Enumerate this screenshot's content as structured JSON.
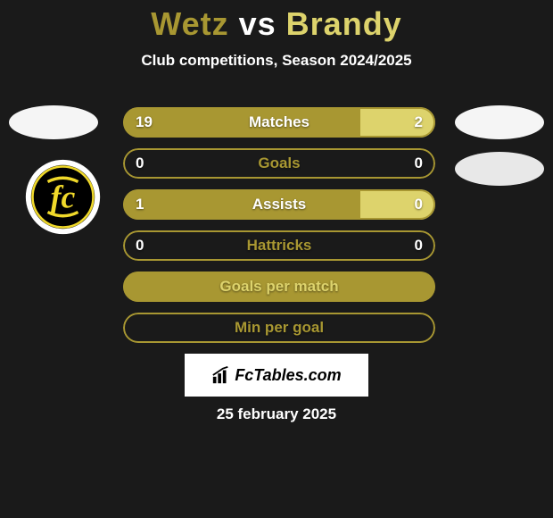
{
  "header": {
    "title_left": "Wetz",
    "title_vs": " vs ",
    "title_right": "Brandy",
    "subtitle": "Club competitions, Season 2024/2025",
    "left_color": "#a89732",
    "right_color": "#ddd36c"
  },
  "left_club_logo": {
    "outer_ring": "#ffffff",
    "inner_fill": "#000000",
    "letter_color": "#f0d92a"
  },
  "stats": [
    {
      "label": "Matches",
      "left_value": "19",
      "right_value": "2",
      "left_pct": 76,
      "right_pct": 24,
      "left_bar_color": "#a89732",
      "right_bar_color": "#ddd36c",
      "border_color": "#a89732",
      "label_color": "#ffffff"
    },
    {
      "label": "Goals",
      "left_value": "0",
      "right_value": "0",
      "left_pct": 0,
      "right_pct": 0,
      "left_bar_color": "#a89732",
      "right_bar_color": "#ddd36c",
      "border_color": "#a89732",
      "label_color": "#a89732"
    },
    {
      "label": "Assists",
      "left_value": "1",
      "right_value": "0",
      "left_pct": 76,
      "right_pct": 24,
      "left_bar_color": "#a89732",
      "right_bar_color": "#ddd36c",
      "border_color": "#a89732",
      "label_color": "#ffffff"
    },
    {
      "label": "Hattricks",
      "left_value": "0",
      "right_value": "0",
      "left_pct": 0,
      "right_pct": 0,
      "left_bar_color": "#a89732",
      "right_bar_color": "#ddd36c",
      "border_color": "#a89732",
      "label_color": "#a89732"
    },
    {
      "label": "Goals per match",
      "left_value": "",
      "right_value": "",
      "left_pct": 100,
      "right_pct": 0,
      "left_bar_color": "#a89732",
      "right_bar_color": "#ddd36c",
      "border_color": "#a89732",
      "label_color": "#ddd36c"
    },
    {
      "label": "Min per goal",
      "left_value": "",
      "right_value": "",
      "left_pct": 0,
      "right_pct": 0,
      "left_bar_color": "#a89732",
      "right_bar_color": "#ddd36c",
      "border_color": "#a89732",
      "label_color": "#a89732"
    }
  ],
  "branding": {
    "text": "FcTables.com"
  },
  "date": "25 february 2025",
  "background_color": "#1a1a1a"
}
